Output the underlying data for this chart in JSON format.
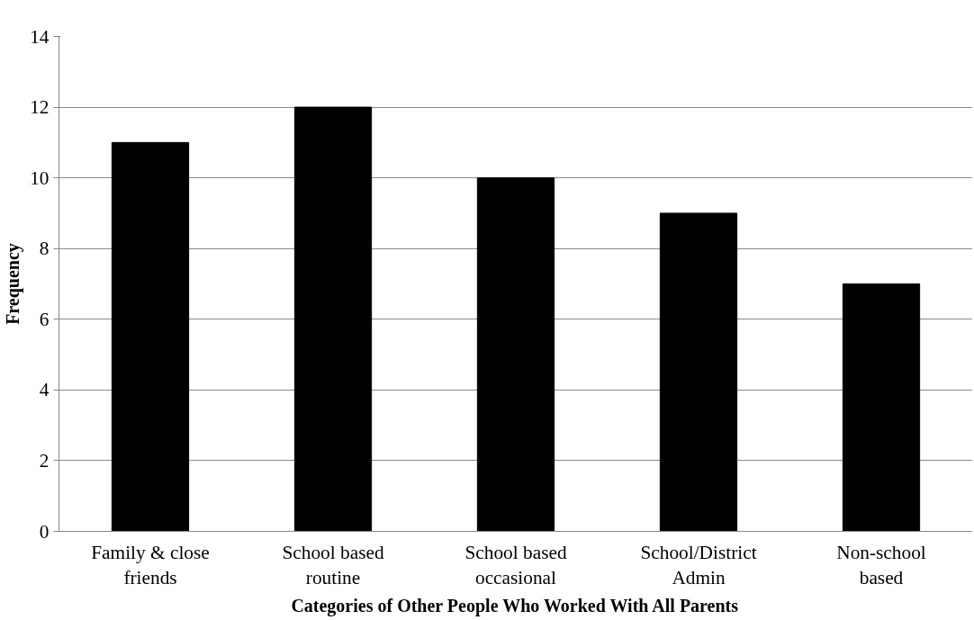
{
  "chart_data": {
    "type": "bar",
    "xlabel": "Categories of Other People Who Worked With All Parents",
    "ylabel": "Frequency",
    "categories": [
      "Family & close friends",
      "School based routine",
      "School based occasional",
      "School/District Admin",
      "Non-school based"
    ],
    "values": [
      11,
      12,
      10,
      9,
      7
    ],
    "color": "#000000",
    "ylim": [
      0,
      14
    ],
    "yticks": [
      0,
      2,
      4,
      6,
      8,
      10,
      12,
      14
    ],
    "grid": "y"
  }
}
